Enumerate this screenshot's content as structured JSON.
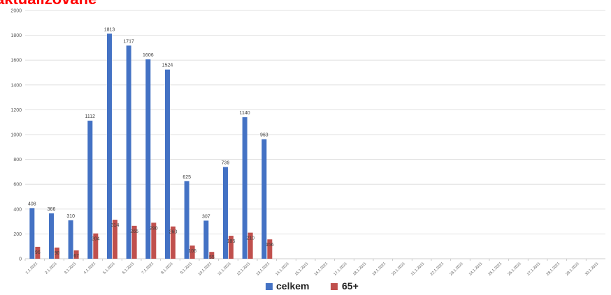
{
  "banner_text": "aktualizovane",
  "colors": {
    "celkem": "#4472c4",
    "senior": "#c0504d",
    "grid": "#d9d9d9",
    "axis": "#bfbfbf",
    "banner": "#ff0000"
  },
  "chart_data": {
    "type": "bar",
    "title": "",
    "xlabel": "",
    "ylabel": "",
    "ylim": [
      0,
      2000
    ],
    "yticks": [
      0,
      200,
      400,
      600,
      800,
      1000,
      1200,
      1400,
      1600,
      1800,
      2000
    ],
    "grid": true,
    "legend": "bottom-center",
    "categories": [
      "1.1.2021",
      "2.1.2021",
      "3.1.2021",
      "4.1.2021",
      "5.1.2021",
      "6.1.2021",
      "7.1.2021",
      "8.1.2021",
      "9.1.2021",
      "10.1.2021",
      "11.1.2021",
      "12.1.2021",
      "13.1.2021",
      "14.1.2021",
      "15.1.2021",
      "16.1.2021",
      "17.1.2021",
      "18.1.2021",
      "19.1.2021",
      "20.1.2021",
      "21.1.2021",
      "22.1.2021",
      "23.1.2021",
      "24.1.2021",
      "25.1.2021",
      "26.1.2021",
      "27.1.2021",
      "28.1.2021",
      "29.1.2021",
      "30.1.2021"
    ],
    "series": [
      {
        "name": "celkem",
        "values": [
          408,
          366,
          310,
          1112,
          1813,
          1717,
          1606,
          1524,
          625,
          307,
          739,
          1140,
          963,
          null,
          null,
          null,
          null,
          null,
          null,
          null,
          null,
          null,
          null,
          null,
          null,
          null,
          null,
          null,
          null,
          null
        ]
      },
      {
        "name": "65+",
        "values": [
          96,
          90,
          67,
          204,
          314,
          265,
          290,
          260,
          106,
          55,
          185,
          210,
          156,
          null,
          null,
          null,
          null,
          null,
          null,
          null,
          null,
          null,
          null,
          null,
          null,
          null,
          null,
          null,
          null,
          null
        ]
      }
    ]
  }
}
